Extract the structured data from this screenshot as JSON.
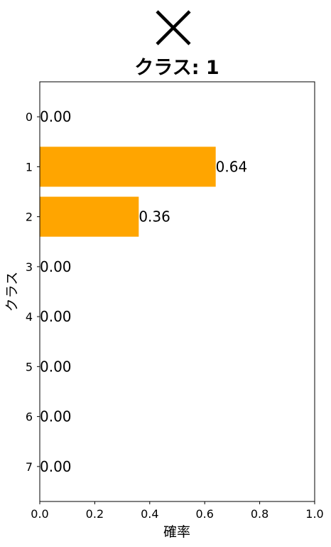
{
  "chart_data": {
    "type": "bar",
    "orientation": "horizontal",
    "title": "クラス: 1",
    "header_icon": "cross-mark-icon",
    "xlabel": "確率",
    "ylabel": "クラス",
    "categories": [
      "0",
      "1",
      "2",
      "3",
      "4",
      "5",
      "6",
      "7"
    ],
    "values": [
      0.0,
      0.64,
      0.36,
      0.0,
      0.0,
      0.0,
      0.0,
      0.0
    ],
    "data_labels": [
      "0.00",
      "0.64",
      "0.36",
      "0.00",
      "0.00",
      "0.00",
      "0.00",
      "0.00"
    ],
    "xticks": [
      "0.0",
      "0.2",
      "0.4",
      "0.6",
      "0.8",
      "1.0"
    ],
    "xlim": [
      0,
      1.0
    ],
    "grid": false,
    "bar_color": "#FFA500",
    "y_inverted": true
  }
}
